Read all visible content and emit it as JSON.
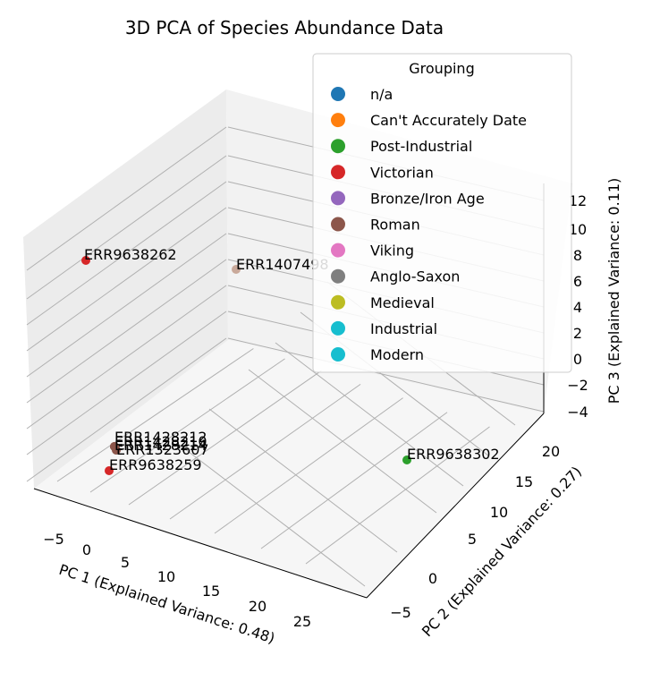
{
  "chart_data": {
    "type": "scatter",
    "projection": "3d",
    "title": "3D PCA of Species Abundance Data",
    "xlabel": "PC 1 (Explained Variance: 0.48)",
    "ylabel": "PC 2 (Explained Variance: 0.27)",
    "zlabel": "PC 3 (Explained Variance: 0.11)",
    "xticks": [
      "−5",
      "0",
      "5",
      "10",
      "15",
      "20",
      "25"
    ],
    "yticks": [
      "−5",
      "0",
      "5",
      "10",
      "15",
      "20"
    ],
    "zticks": [
      "−4",
      "−2",
      "0",
      "2",
      "4",
      "6",
      "8",
      "10",
      "12"
    ],
    "grid": true,
    "legend": {
      "title": "Grouping",
      "position": "top-right",
      "entries": [
        {
          "label": "n/a",
          "color": "#1f77b4"
        },
        {
          "label": "Can't Accurately Date",
          "color": "#ff7f0e"
        },
        {
          "label": "Post-Industrial",
          "color": "#2ca02c"
        },
        {
          "label": "Victorian",
          "color": "#d62728"
        },
        {
          "label": "Bronze/Iron Age",
          "color": "#9467bd"
        },
        {
          "label": "Roman",
          "color": "#8c564b"
        },
        {
          "label": "Viking",
          "color": "#e377c2"
        },
        {
          "label": "Anglo-Saxon",
          "color": "#7f7f7f"
        },
        {
          "label": "Medieval",
          "color": "#bcbd22"
        },
        {
          "label": "Industrial",
          "color": "#17becf"
        },
        {
          "label": "Modern",
          "color": "#17becf"
        }
      ]
    },
    "points": [
      {
        "label": "ERR9638262",
        "group": "Victorian",
        "color": "#d62728"
      },
      {
        "label": "ERR1407498",
        "group": "Roman",
        "color": "#c9a99a"
      },
      {
        "label": "ERR9638302",
        "group": "Post-Industrial",
        "color": "#2ca02c"
      },
      {
        "label": "ERR9638259",
        "group": "Victorian",
        "color": "#d62728"
      },
      {
        "label": "ERR1323607",
        "group": "Roman",
        "color": "#8c564b"
      },
      {
        "label": "ERR1428210",
        "group": "Roman",
        "color": "#8c564b"
      },
      {
        "label": "ERR1428212",
        "group": "Roman",
        "color": "#8c564b"
      },
      {
        "label": "ERR1428214",
        "group": "Roman",
        "color": "#8c564b"
      }
    ]
  }
}
